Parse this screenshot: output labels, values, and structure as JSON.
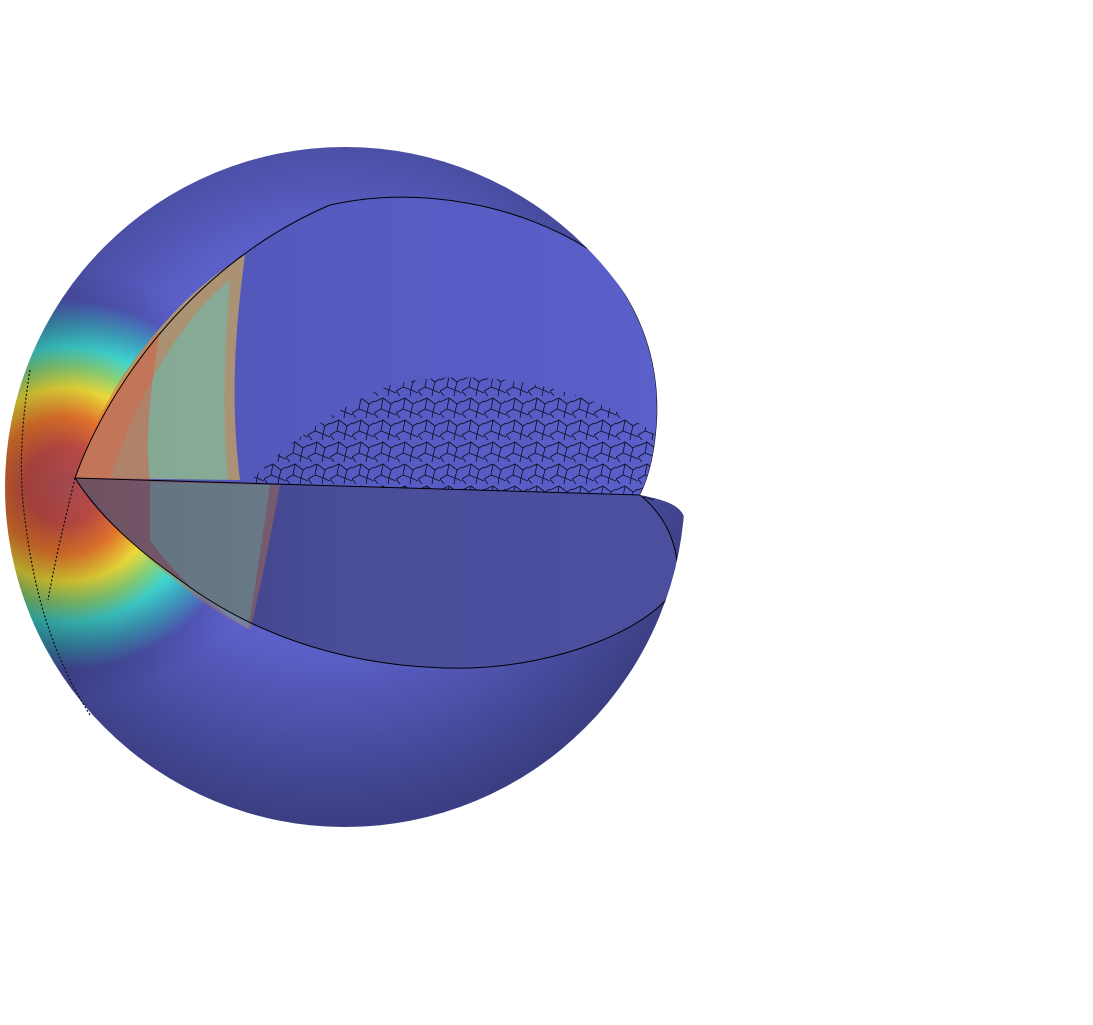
{
  "scene": {
    "subject": "sphere-cutaway-mesh",
    "background": "#ffffff",
    "colormap": [
      "#5b5fc7",
      "#4fd6d6",
      "#f2e83a",
      "#f08a2a",
      "#c94a4a"
    ],
    "mesh_line_color": "#000000",
    "cut_face_color": "#5a5fc9"
  }
}
